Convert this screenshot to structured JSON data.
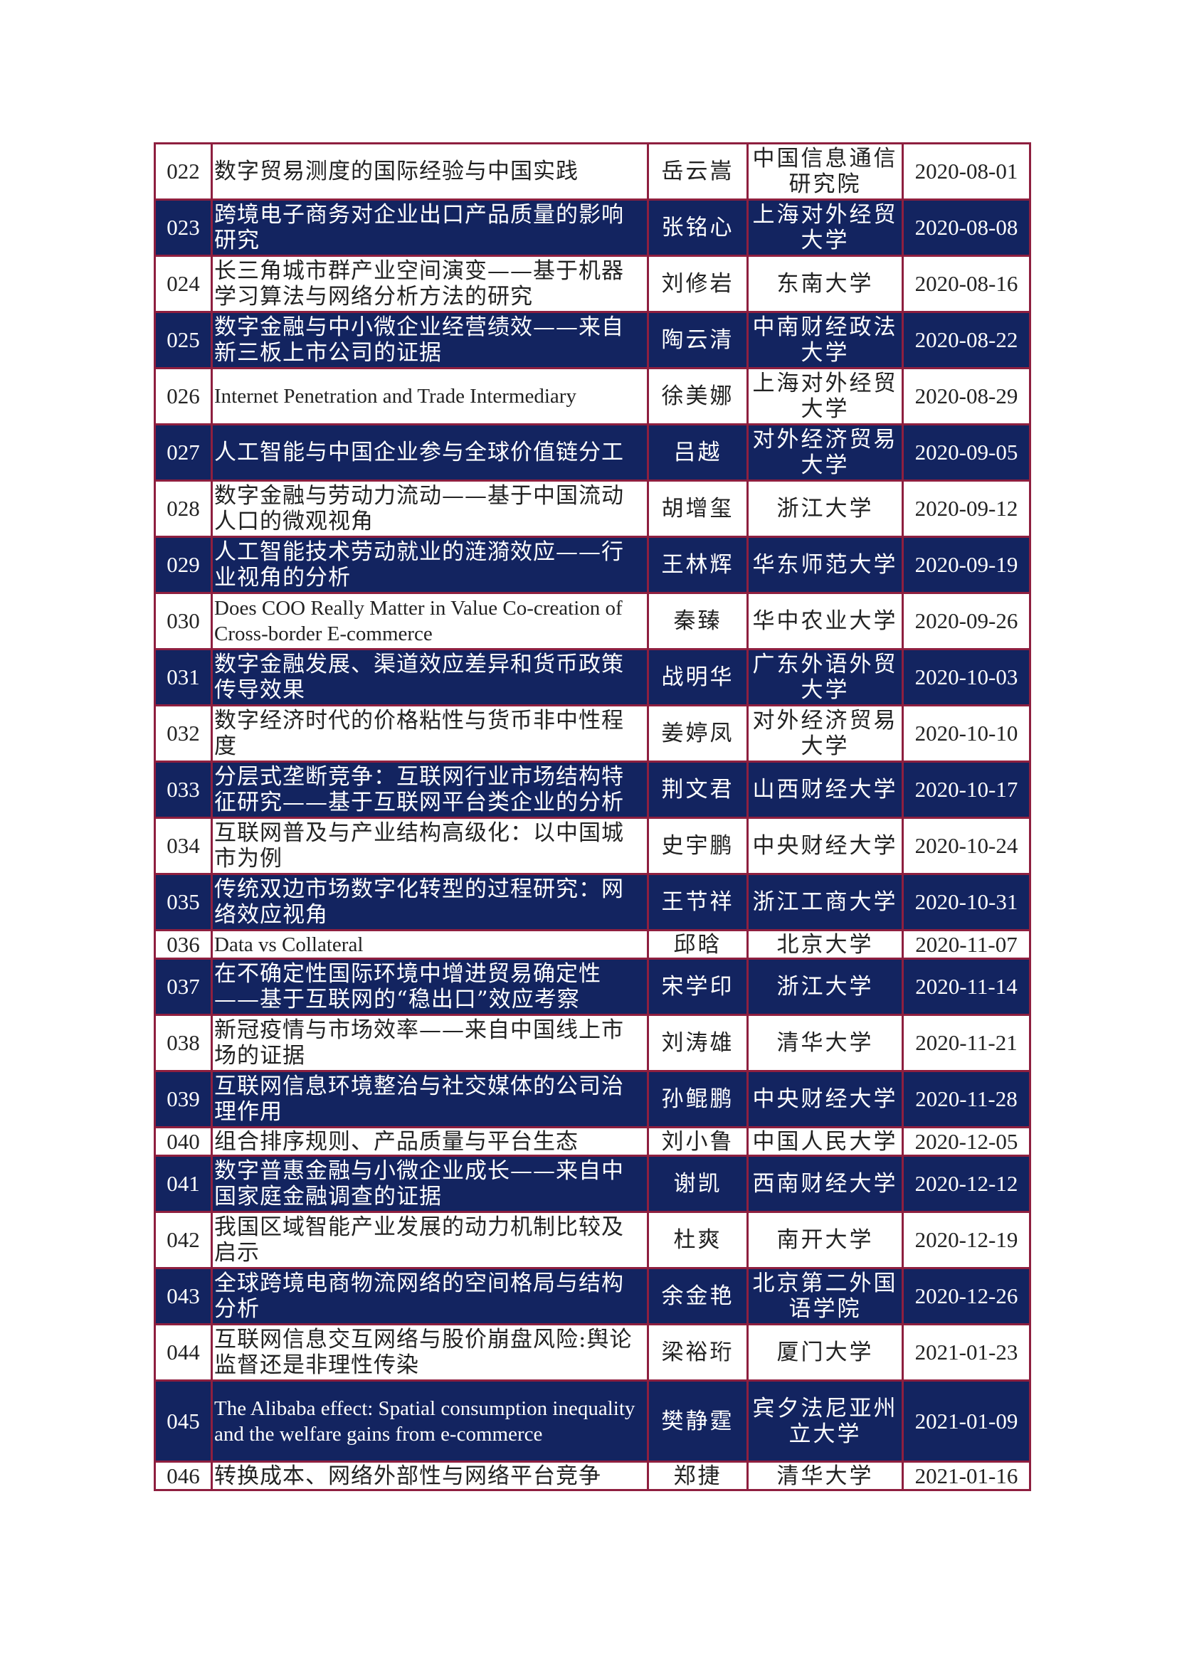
{
  "rows": [
    {
      "num": "022",
      "title": "数字贸易测度的国际经验与中国实践",
      "author": "岳云嵩",
      "institution": "中国信息通信研究院",
      "date": "2020-08-01"
    },
    {
      "num": "023",
      "title": "跨境电子商务对企业出口产品质量的影响研究",
      "author": "张铭心",
      "institution": "上海对外经贸大学",
      "date": "2020-08-08"
    },
    {
      "num": "024",
      "title": "长三角城市群产业空间演变——基于机器学习算法与网络分析方法的研究",
      "author": "刘修岩",
      "institution": "东南大学",
      "date": "2020-08-16"
    },
    {
      "num": "025",
      "title": "数字金融与中小微企业经营绩效——来自新三板上市公司的证据",
      "author": "陶云清",
      "institution": "中南财经政法大学",
      "date": "2020-08-22"
    },
    {
      "num": "026",
      "title": "Internet Penetration and Trade Intermediary",
      "author": "徐美娜",
      "institution": "上海对外经贸大学",
      "date": "2020-08-29"
    },
    {
      "num": "027",
      "title": "人工智能与中国企业参与全球价值链分工",
      "author": "吕越",
      "institution": "对外经济贸易大学",
      "date": "2020-09-05"
    },
    {
      "num": "028",
      "title": "数字金融与劳动力流动——基于中国流动人口的微观视角",
      "author": "胡增玺",
      "institution": "浙江大学",
      "date": "2020-09-12"
    },
    {
      "num": "029",
      "title": "人工智能技术劳动就业的涟漪效应——行业视角的分析",
      "author": "王林辉",
      "institution": "华东师范大学",
      "date": "2020-09-19"
    },
    {
      "num": "030",
      "title": "Does COO Really Matter in Value Co-creation of Cross-border E-commerce",
      "author": "秦臻",
      "institution": "华中农业大学",
      "date": "2020-09-26"
    },
    {
      "num": "031",
      "title": "数字金融发展、渠道效应差异和货币政策传导效果",
      "author": "战明华",
      "institution": "广东外语外贸大学",
      "date": "2020-10-03"
    },
    {
      "num": "032",
      "title": "数字经济时代的价格粘性与货币非中性程度",
      "author": "姜婷凤",
      "institution": "对外经济贸易大学",
      "date": "2020-10-10"
    },
    {
      "num": "033",
      "title": "分层式垄断竞争：互联网行业市场结构特征研究——基于互联网平台类企业的分析",
      "author": "荆文君",
      "institution": "山西财经大学",
      "date": "2020-10-17"
    },
    {
      "num": "034",
      "title": "互联网普及与产业结构高级化：以中国城市为例",
      "author": "史宇鹏",
      "institution": "中央财经大学",
      "date": "2020-10-24"
    },
    {
      "num": "035",
      "title": "传统双边市场数字化转型的过程研究：网络效应视角",
      "author": "王节祥",
      "institution": "浙江工商大学",
      "date": "2020-10-31"
    },
    {
      "num": "036",
      "title": "Data vs Collateral",
      "author": "邱晗",
      "institution": "北京大学",
      "date": "2020-11-07"
    },
    {
      "num": "037",
      "title": "在不确定性国际环境中增进贸易确定性——基于互联网的“稳出口”效应考察",
      "author": "宋学印",
      "institution": "浙江大学",
      "date": "2020-11-14"
    },
    {
      "num": "038",
      "title": "新冠疫情与市场效率——来自中国线上市场的证据",
      "author": "刘涛雄",
      "institution": "清华大学",
      "date": "2020-11-21"
    },
    {
      "num": "039",
      "title": "互联网信息环境整治与社交媒体的公司治理作用",
      "author": "孙鲲鹏",
      "institution": "中央财经大学",
      "date": "2020-11-28"
    },
    {
      "num": "040",
      "title": "组合排序规则、产品质量与平台生态",
      "author": "刘小鲁",
      "institution": "中国人民大学",
      "date": "2020-12-05"
    },
    {
      "num": "041",
      "title": "数字普惠金融与小微企业成长——来自中国家庭金融调查的证据",
      "author": "谢凯",
      "institution": "西南财经大学",
      "date": "2020-12-12"
    },
    {
      "num": "042",
      "title": "我国区域智能产业发展的动力机制比较及启示",
      "author": "杜爽",
      "institution": "南开大学",
      "date": "2020-12-19"
    },
    {
      "num": "043",
      "title": "全球跨境电商物流网络的空间格局与结构分析",
      "author": "余金艳",
      "institution": "北京第二外国语学院",
      "date": "2020-12-26"
    },
    {
      "num": "044",
      "title": "互联网信息交互网络与股价崩盘风险:舆论监督还是非理性传染",
      "author": "梁裕珩",
      "institution": "厦门大学",
      "date": "2021-01-23"
    },
    {
      "num": "045",
      "title": "The Alibaba effect: Spatial consumption inequality and the welfare gains from e-commerce",
      "author": "樊静霆",
      "institution": "宾夕法尼亚州立大学",
      "date": "2021-01-09"
    },
    {
      "num": "046",
      "title": "转换成本、网络外部性与网络平台竞争",
      "author": "郑捷",
      "institution": "清华大学",
      "date": "2021-01-16"
    }
  ]
}
